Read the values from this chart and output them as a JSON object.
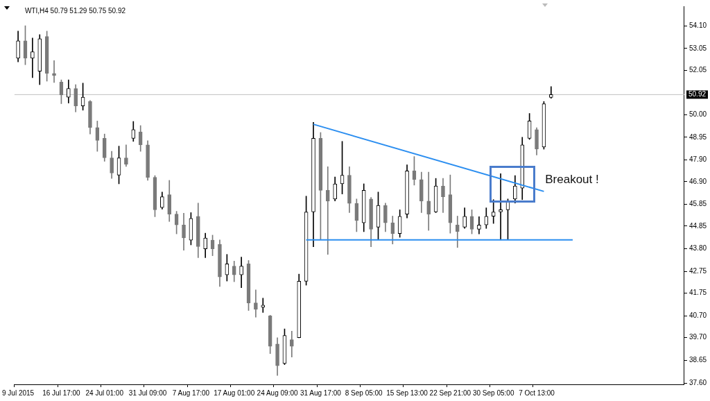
{
  "chart_data": {
    "type": "candlestick",
    "title": "WTI,H4 50.79 51.29 50.75 50.92",
    "colors": [
      "#000000",
      "#7a7a7a",
      "#000000",
      "#000000",
      "#7a7a7a",
      "#7a7a7a",
      "#7a7a7a",
      "#000000",
      "#7a7a7a",
      "#000000",
      "#7a7a7a",
      "#7a7a7a",
      "#7a7a7a",
      "#7a7a7a",
      "#000000",
      "#7a7a7a",
      "#000000",
      "#7a7a7a",
      "#7a7a7a",
      "#7a7a7a",
      "#000000",
      "#7a7a7a",
      "#7a7a7a",
      "#7a7a7a",
      "#000000",
      "#7a7a7a",
      "#000000",
      "#7a7a7a",
      "#7a7a7a",
      "#000000",
      "#7a7a7a",
      "#000000",
      "#7a7a7a",
      "#7a7a7a",
      "#000000",
      "#7a7a7a",
      "#7a7a7a",
      "#000000",
      "#7a7a7a",
      "#000000",
      "#000000",
      "#000000",
      "#7a7a7a",
      "#7a7a7a",
      "#000000",
      "#000000",
      "#7a7a7a",
      "#7a7a7a",
      "#000000",
      "#7a7a7a",
      "#000000",
      "#7a7a7a",
      "#7a7a7a",
      "#000000",
      "#000000",
      "#7a7a7a",
      "#7a7a7a",
      "#7a7a7a",
      "#000000",
      "#7a7a7a",
      "#7a7a7a",
      "#7a7a7a",
      "#000000",
      "#7a7a7a",
      "#000000",
      "#000000",
      "#000000",
      "#000000",
      "#000000",
      "#000000",
      "#000000",
      "#000000",
      "#7a7a7a",
      "#000000",
      "#000000",
      null,
      null,
      null,
      null,
      null,
      null,
      null,
      null,
      null,
      null,
      null,
      null,
      null,
      null,
      null,
      null,
      null,
      null
    ],
    "categories": [
      "9 Jul 2015",
      null,
      null,
      null,
      null,
      null,
      "16 Jul 17:00",
      null,
      null,
      null,
      null,
      null,
      "24 Jul 01:00",
      null,
      null,
      null,
      null,
      null,
      "31 Jul 09:00",
      null,
      null,
      null,
      null,
      null,
      "7 Aug 17:00",
      null,
      null,
      null,
      null,
      null,
      "17 Aug 01:00",
      null,
      null,
      null,
      null,
      null,
      "24 Aug 09:00",
      null,
      null,
      null,
      null,
      null,
      "31 Aug 17:00",
      null,
      null,
      null,
      null,
      null,
      "8 Sep 05:00",
      null,
      null,
      null,
      null,
      null,
      "15 Sep 13:00",
      null,
      null,
      null,
      null,
      null,
      "22 Sep 21:00",
      null,
      null,
      null,
      null,
      null,
      "30 Sep 05:00",
      null,
      null,
      null,
      null,
      null,
      "7 Oct 13:00",
      null,
      null,
      null,
      null,
      null,
      null,
      null,
      null,
      null,
      null,
      null,
      null,
      null,
      null,
      null,
      null,
      null,
      null,
      null,
      null
    ],
    "ohlc": [
      [
        52.6,
        53.85,
        52.43,
        53.4
      ],
      [
        53.4,
        54.1,
        52.3,
        52.6
      ],
      [
        52.6,
        53.53,
        51.7,
        52.9
      ],
      [
        52.0,
        53.69,
        51.38,
        53.5
      ],
      [
        53.6,
        53.85,
        51.54,
        51.9
      ],
      [
        51.9,
        52.49,
        51.48,
        51.8
      ],
      [
        51.5,
        51.6,
        50.5,
        50.9
      ],
      [
        50.8,
        51.6,
        50.53,
        51.2
      ],
      [
        51.2,
        51.38,
        50.12,
        50.4
      ],
      [
        50.4,
        51.45,
        50.2,
        50.8
      ],
      [
        50.6,
        50.65,
        49.1,
        49.4
      ],
      [
        49.4,
        49.7,
        48.3,
        48.8
      ],
      [
        48.9,
        49.1,
        47.84,
        48.0
      ],
      [
        48.0,
        48.3,
        47.05,
        47.3
      ],
      [
        47.2,
        48.54,
        46.8,
        48.0
      ],
      [
        48.0,
        48.6,
        47.6,
        47.7
      ],
      [
        48.9,
        49.68,
        48.76,
        49.3
      ],
      [
        49.2,
        49.49,
        48.3,
        48.6
      ],
      [
        48.6,
        48.79,
        46.96,
        47.1
      ],
      [
        47.1,
        47.18,
        45.28,
        45.6
      ],
      [
        45.7,
        46.42,
        45.63,
        46.2
      ],
      [
        46.3,
        46.96,
        45.06,
        45.4
      ],
      [
        45.4,
        45.53,
        44.49,
        44.9
      ],
      [
        44.9,
        45.44,
        43.73,
        44.3
      ],
      [
        44.2,
        45.47,
        43.98,
        45.2
      ],
      [
        45.3,
        45.91,
        43.39,
        43.9
      ],
      [
        43.8,
        44.52,
        43.39,
        44.3
      ],
      [
        44.2,
        44.43,
        43.48,
        43.8
      ],
      [
        44.0,
        44.21,
        42.06,
        42.5
      ],
      [
        42.6,
        43.54,
        42.31,
        43.1
      ],
      [
        43.0,
        43.23,
        42.28,
        42.6
      ],
      [
        42.6,
        43.42,
        42.0,
        43.0
      ],
      [
        43.1,
        43.26,
        40.95,
        41.3
      ],
      [
        41.3,
        41.9,
        40.64,
        41.0
      ],
      [
        41.1,
        41.52,
        40.86,
        41.2
      ],
      [
        40.7,
        40.73,
        38.96,
        39.3
      ],
      [
        39.4,
        39.69,
        37.95,
        38.4
      ],
      [
        38.5,
        40.1,
        38.45,
        39.8
      ],
      [
        39.6,
        40.0,
        38.8,
        39.3
      ],
      [
        39.7,
        42.63,
        39.69,
        42.3
      ],
      [
        42.3,
        46.23,
        42.12,
        45.5
      ],
      [
        45.5,
        49.64,
        43.89,
        48.9
      ],
      [
        48.9,
        49.17,
        44.21,
        46.5
      ],
      [
        46.5,
        47.59,
        43.54,
        46.0
      ],
      [
        46.1,
        47.12,
        46.01,
        46.8
      ],
      [
        46.8,
        48.76,
        46.33,
        47.2
      ],
      [
        47.2,
        47.59,
        45.47,
        45.9
      ],
      [
        45.9,
        46.1,
        44.59,
        45.1
      ],
      [
        45.0,
        46.8,
        44.59,
        46.5
      ],
      [
        46.1,
        46.17,
        43.89,
        44.7
      ],
      [
        44.8,
        46.42,
        44.21,
        45.8
      ],
      [
        45.8,
        45.91,
        44.59,
        45.0
      ],
      [
        45.0,
        45.31,
        44.02,
        44.5
      ],
      [
        44.5,
        45.6,
        44.33,
        45.3
      ],
      [
        45.4,
        47.68,
        45.22,
        47.4
      ],
      [
        47.4,
        48.06,
        46.74,
        47.0
      ],
      [
        47.0,
        47.34,
        45.47,
        46.0
      ],
      [
        46.0,
        47.34,
        44.65,
        45.4
      ],
      [
        45.5,
        47.05,
        45.47,
        46.7
      ],
      [
        46.7,
        47.05,
        45.47,
        46.2
      ],
      [
        46.3,
        47.21,
        44.52,
        45.0
      ],
      [
        44.9,
        45.31,
        43.86,
        44.6
      ],
      [
        44.8,
        45.69,
        44.74,
        45.3
      ],
      [
        45.3,
        45.6,
        44.49,
        44.7
      ],
      [
        44.7,
        45.28,
        44.49,
        44.9
      ],
      [
        44.9,
        45.69,
        44.74,
        45.3
      ],
      [
        45.3,
        46.07,
        44.97,
        45.5
      ],
      [
        45.5,
        47.27,
        44.21,
        45.6
      ],
      [
        45.6,
        46.1,
        44.21,
        46.0
      ],
      [
        46.1,
        47.18,
        45.91,
        46.7
      ],
      [
        46.6,
        48.95,
        46.07,
        48.6
      ],
      [
        48.9,
        50.05,
        48.85,
        49.7
      ],
      [
        49.3,
        49.39,
        48.13,
        48.4
      ],
      [
        48.5,
        50.6,
        48.4,
        50.5
      ],
      [
        50.79,
        51.29,
        50.75,
        50.92
      ],
      null,
      null,
      null,
      null,
      null,
      null,
      null,
      null,
      null,
      null,
      null,
      null,
      null,
      null,
      null,
      null,
      null,
      null
    ],
    "series": [
      {
        "type": "line",
        "color": "#2b8ef0",
        "values": [
          null,
          null,
          null,
          null,
          null,
          null,
          null,
          null,
          null,
          null,
          null,
          null,
          null,
          null,
          null,
          null,
          null,
          null,
          null,
          null,
          null,
          null,
          null,
          null,
          null,
          null,
          null,
          null,
          null,
          null,
          null,
          null,
          null,
          null,
          null,
          null,
          null,
          null,
          null,
          null,
          null,
          49.55,
          null,
          null,
          null,
          null,
          null,
          null,
          null,
          null,
          null,
          null,
          null,
          null,
          null,
          null,
          null,
          null,
          null,
          null,
          null,
          null,
          null,
          null,
          null,
          null,
          null,
          null,
          null,
          null,
          null,
          null,
          null,
          46.45,
          null,
          null,
          null,
          null,
          null,
          null,
          null,
          null,
          null,
          null,
          null,
          null,
          null,
          null,
          null,
          null,
          null,
          null,
          null
        ]
      },
      {
        "type": "line",
        "color": "#2b8ef0",
        "values": [
          null,
          null,
          null,
          null,
          null,
          null,
          null,
          null,
          null,
          null,
          null,
          null,
          null,
          null,
          null,
          null,
          null,
          null,
          null,
          null,
          null,
          null,
          null,
          null,
          null,
          null,
          null,
          null,
          null,
          null,
          null,
          null,
          null,
          null,
          null,
          null,
          null,
          null,
          null,
          null,
          44.21,
          null,
          null,
          null,
          null,
          null,
          null,
          null,
          null,
          null,
          null,
          null,
          null,
          null,
          null,
          null,
          null,
          null,
          null,
          null,
          null,
          null,
          null,
          null,
          null,
          null,
          null,
          null,
          null,
          null,
          null,
          null,
          null,
          null,
          null,
          null,
          null,
          44.21,
          null,
          null,
          null,
          null,
          null,
          null,
          null,
          null,
          null,
          null,
          null,
          null,
          null,
          null,
          null
        ]
      }
    ],
    "ylim": [
      37.54,
      55.0
    ],
    "yticks": [
      {
        "value": 37.6,
        "label": "37.60"
      },
      {
        "value": 38.65,
        "label": "38.65"
      },
      {
        "value": 39.7,
        "label": "39.70"
      },
      {
        "value": 40.7,
        "label": "40.70"
      },
      {
        "value": 41.75,
        "label": "41.75"
      },
      {
        "value": 42.75,
        "label": "42.75"
      },
      {
        "value": 43.8,
        "label": "43.80"
      },
      {
        "value": 44.85,
        "label": "44.85"
      },
      {
        "value": 45.85,
        "label": "45.85"
      },
      {
        "value": 46.9,
        "label": "46.90"
      },
      {
        "value": 47.9,
        "label": "47.90"
      },
      {
        "value": 48.95,
        "label": "48.95"
      },
      {
        "value": 50.0,
        "label": "50.00"
      },
      {
        "value": 52.05,
        "label": "52.05"
      },
      {
        "value": 53.05,
        "label": "53.05"
      },
      {
        "value": 54.1,
        "label": "54.10"
      }
    ],
    "ref_lines": [
      {
        "axis": "y",
        "value": 50.92,
        "label": "50.92",
        "color": "#c0c0c0"
      }
    ],
    "annotations": [
      "Breakout !"
    ],
    "grid": false,
    "legend": false
  }
}
